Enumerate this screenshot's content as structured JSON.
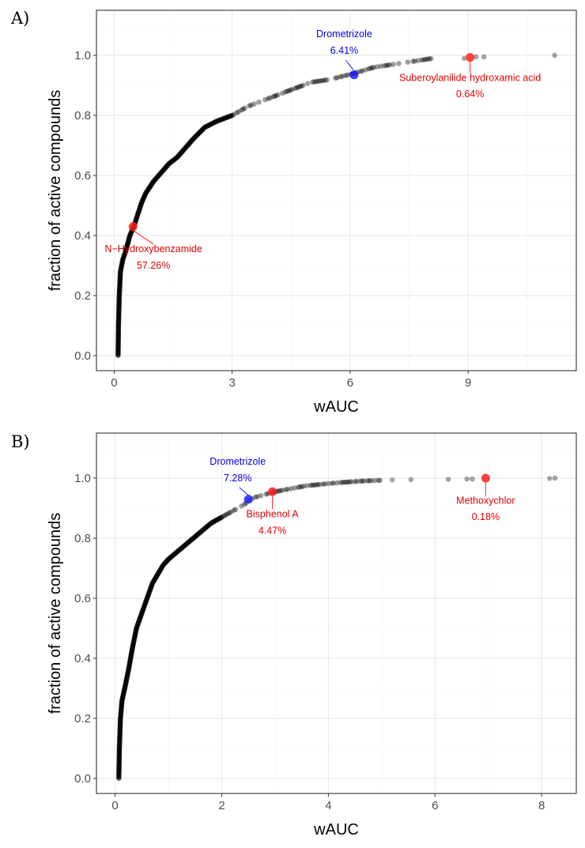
{
  "chart_data": [
    {
      "type": "scatter",
      "panel_label": "A)",
      "xlabel": "wAUC",
      "ylabel": "fraction of active compounds",
      "xlim": [
        -0.45,
        11.75
      ],
      "ylim": [
        -0.05,
        1.15
      ],
      "xticks": [
        0,
        3,
        6,
        9
      ],
      "yticks": [
        0.0,
        0.2,
        0.4,
        0.6,
        0.8,
        1.0
      ],
      "tick_labels_x": [
        "0",
        "3",
        "6",
        "9"
      ],
      "tick_labels_y": [
        "0.0",
        "0.2",
        "0.4",
        "0.6",
        "0.8",
        "1.0"
      ],
      "grid": true,
      "curve": [
        [
          0.1,
          0.0
        ],
        [
          0.11,
          0.1
        ],
        [
          0.13,
          0.2
        ],
        [
          0.16,
          0.28
        ],
        [
          0.22,
          0.32
        ],
        [
          0.3,
          0.35
        ],
        [
          0.4,
          0.4
        ],
        [
          0.5,
          0.43
        ],
        [
          0.6,
          0.47
        ],
        [
          0.7,
          0.51
        ],
        [
          0.8,
          0.54
        ],
        [
          0.9,
          0.56
        ],
        [
          1.0,
          0.58
        ],
        [
          1.2,
          0.61
        ],
        [
          1.4,
          0.64
        ],
        [
          1.6,
          0.66
        ],
        [
          1.8,
          0.69
        ],
        [
          2.0,
          0.72
        ],
        [
          2.3,
          0.76
        ],
        [
          2.6,
          0.78
        ],
        [
          3.0,
          0.8
        ],
        [
          3.4,
          0.83
        ],
        [
          3.8,
          0.85
        ],
        [
          4.2,
          0.87
        ],
        [
          4.6,
          0.89
        ],
        [
          5.0,
          0.91
        ],
        [
          5.5,
          0.92
        ],
        [
          6.1,
          0.94
        ],
        [
          6.6,
          0.96
        ],
        [
          7.1,
          0.97
        ],
        [
          7.6,
          0.98
        ],
        [
          8.1,
          0.99
        ]
      ],
      "scatter_points": [
        [
          8.9,
          0.99
        ],
        [
          9.2,
          0.995
        ],
        [
          9.4,
          0.995
        ],
        [
          11.2,
          1.0
        ]
      ],
      "highlights": [
        {
          "name": "Drometrizole",
          "pct": "6.41%",
          "x": 6.1,
          "y": 0.935,
          "color": "#2020ff",
          "label_x": 5.85,
          "label_y": 1.06,
          "pct_y": 1.005,
          "label_pos": "above"
        },
        {
          "name": "Suberoylanilide hydroxamic acid",
          "pct": "0.64%",
          "x": 9.05,
          "y": 0.993,
          "color": "#ff2020",
          "label_x": 9.05,
          "label_y": 0.915,
          "pct_y": 0.86,
          "label_pos": "below"
        },
        {
          "name": "N−Hydroxybenzamide",
          "pct": "57.26%",
          "x": 0.48,
          "y": 0.43,
          "color": "#ff2020",
          "label_x": 1.0,
          "label_y": 0.345,
          "pct_y": 0.29,
          "label_pos": "below"
        }
      ]
    },
    {
      "type": "scatter",
      "panel_label": "B)",
      "xlabel": "wAUC",
      "ylabel": "fraction of active compounds",
      "xlim": [
        -0.35,
        8.65
      ],
      "ylim": [
        -0.05,
        1.15
      ],
      "xticks": [
        0,
        2,
        4,
        6,
        8
      ],
      "yticks": [
        0.0,
        0.2,
        0.4,
        0.6,
        0.8,
        1.0
      ],
      "tick_labels_x": [
        "0",
        "2",
        "4",
        "6",
        "8"
      ],
      "tick_labels_y": [
        "0.0",
        "0.2",
        "0.4",
        "0.6",
        "0.8",
        "1.0"
      ],
      "grid": true,
      "curve": [
        [
          0.07,
          0.0
        ],
        [
          0.08,
          0.1
        ],
        [
          0.1,
          0.2
        ],
        [
          0.13,
          0.26
        ],
        [
          0.18,
          0.3
        ],
        [
          0.25,
          0.36
        ],
        [
          0.32,
          0.43
        ],
        [
          0.4,
          0.5
        ],
        [
          0.5,
          0.55
        ],
        [
          0.6,
          0.6
        ],
        [
          0.7,
          0.65
        ],
        [
          0.8,
          0.68
        ],
        [
          0.9,
          0.71
        ],
        [
          1.0,
          0.73
        ],
        [
          1.2,
          0.76
        ],
        [
          1.4,
          0.79
        ],
        [
          1.6,
          0.82
        ],
        [
          1.8,
          0.85
        ],
        [
          2.0,
          0.87
        ],
        [
          2.2,
          0.89
        ],
        [
          2.4,
          0.91
        ],
        [
          2.6,
          0.935
        ],
        [
          2.8,
          0.945
        ],
        [
          3.0,
          0.955
        ],
        [
          3.3,
          0.965
        ],
        [
          3.6,
          0.975
        ],
        [
          3.9,
          0.98
        ],
        [
          4.2,
          0.985
        ],
        [
          4.6,
          0.99
        ],
        [
          5.0,
          0.993
        ]
      ],
      "scatter_points": [
        [
          5.2,
          0.994
        ],
        [
          5.55,
          0.995
        ],
        [
          6.25,
          0.996
        ],
        [
          6.6,
          0.997
        ],
        [
          6.7,
          0.997
        ],
        [
          8.15,
          0.999
        ],
        [
          8.25,
          1.0
        ]
      ],
      "highlights": [
        {
          "name": "Drometrizole",
          "pct": "7.28%",
          "x": 2.5,
          "y": 0.93,
          "color": "#2020ff",
          "label_x": 2.3,
          "label_y": 1.045,
          "pct_y": 0.99,
          "label_pos": "above"
        },
        {
          "name": "Bisphenol A",
          "pct": "4.47%",
          "x": 2.95,
          "y": 0.955,
          "color": "#ff2020",
          "label_x": 2.95,
          "label_y": 0.87,
          "pct_y": 0.815,
          "label_pos": "below"
        },
        {
          "name": "Methoxychlor",
          "pct": "0.18%",
          "x": 6.95,
          "y": 1.0,
          "color": "#ff2020",
          "label_x": 6.95,
          "label_y": 0.915,
          "pct_y": 0.86,
          "label_pos": "below"
        }
      ]
    }
  ]
}
